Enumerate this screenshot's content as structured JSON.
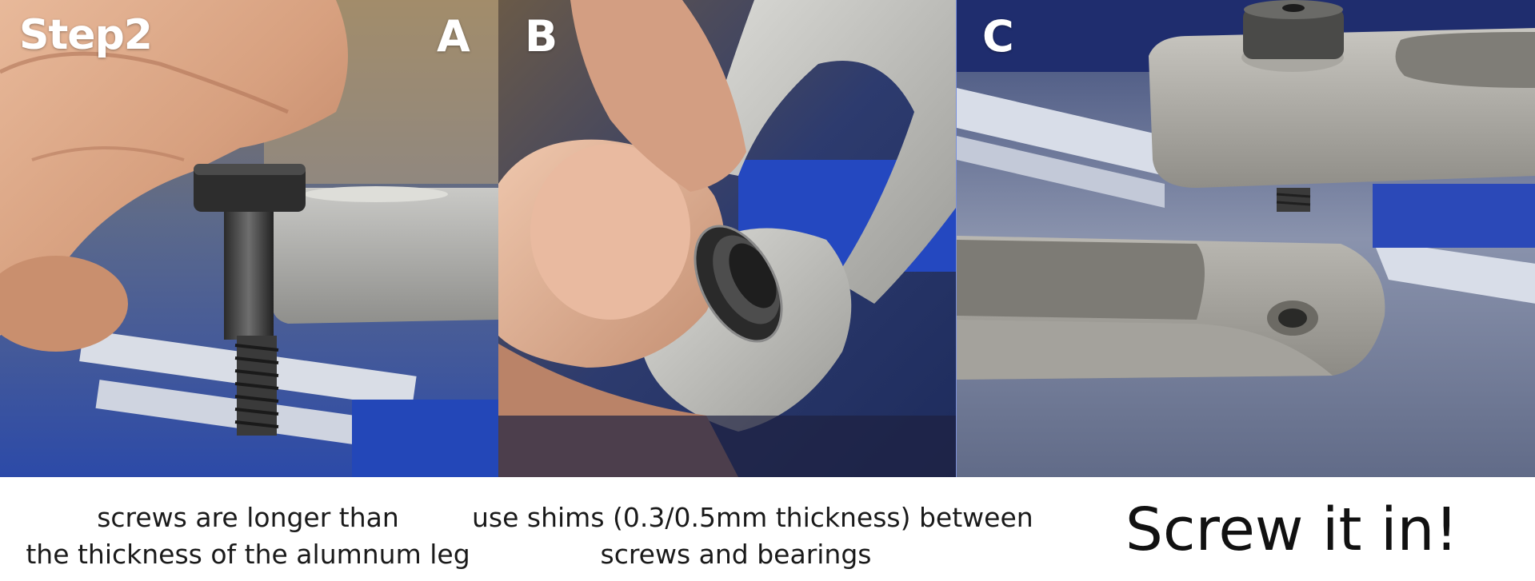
{
  "title": "Step2",
  "panels": [
    {
      "letter": "A",
      "caption_lines": [
        "screws are longer than",
        "the thickness of the alumnum leg"
      ]
    },
    {
      "letter": "B",
      "caption_lines": [
        "use shims (0.3/0.5mm thickness) between",
        "screws and bearings"
      ]
    },
    {
      "letter": "C",
      "caption_lines": [
        "Screw it in!"
      ]
    }
  ]
}
